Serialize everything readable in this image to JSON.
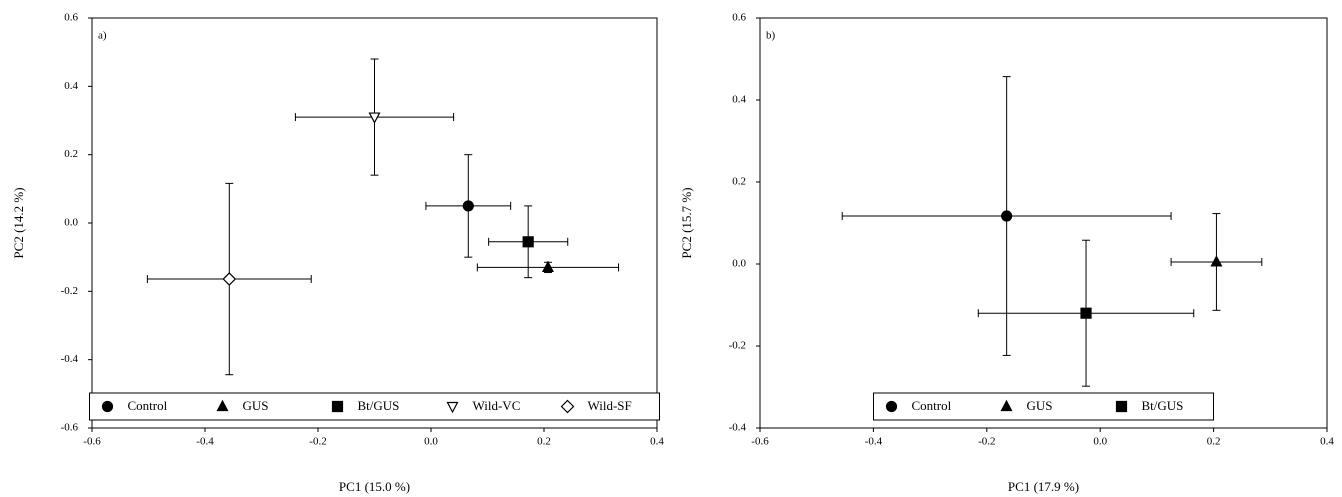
{
  "chart_data": [
    {
      "type": "scatter",
      "label": "a)",
      "xlabel": "PC1 (15.0 %)",
      "ylabel": "PC2 (14.2 %)",
      "xlim": [
        -0.6,
        0.4
      ],
      "ylim": [
        -0.6,
        0.6
      ],
      "xticks": [
        -0.6,
        -0.4,
        -0.2,
        {
          "value": 0,
          "label": "0.0"
        },
        0.2,
        0.4
      ],
      "yticks": [
        -0.6,
        -0.4,
        -0.2,
        {
          "value": 0,
          "label": "0.0"
        },
        0.2,
        0.4,
        0.6
      ],
      "legend": "lower center",
      "series": [
        {
          "name": "Control",
          "color": "#000000",
          "marker": "circle",
          "filled": true,
          "x": [
            0.066
          ],
          "values": [
            0.05
          ],
          "x_err": [
            0.075
          ],
          "y_err": [
            0.15
          ]
        },
        {
          "name": "GUS",
          "color": "#000000",
          "marker": "triangle",
          "filled": true,
          "x": [
            0.207
          ],
          "values": [
            -0.13
          ],
          "x_err": [
            0.125
          ],
          "y_err": [
            0.015
          ]
        },
        {
          "name": "Bt/GUS",
          "color": "#000000",
          "marker": "square",
          "filled": true,
          "x": [
            0.172
          ],
          "values": [
            -0.055
          ],
          "x_err": [
            0.07
          ],
          "y_err": [
            0.105
          ]
        },
        {
          "name": "Wild-VC",
          "color": "#000000",
          "marker": "triangle-down",
          "filled": false,
          "x": [
            -0.1
          ],
          "values": [
            0.31
          ],
          "x_err": [
            0.14
          ],
          "y_err": [
            0.17
          ]
        },
        {
          "name": "Wild-SF",
          "color": "#000000",
          "marker": "diamond",
          "filled": false,
          "x": [
            -0.357
          ],
          "values": [
            -0.164
          ],
          "x_err": [
            0.145
          ],
          "y_err": [
            0.28
          ]
        }
      ]
    },
    {
      "type": "scatter",
      "label": "b)",
      "xlabel": "PC1 (17.9 %)",
      "ylabel": "PC2 (15.7 %)",
      "xlim": [
        -0.6,
        0.4
      ],
      "ylim": [
        -0.4,
        0.6
      ],
      "xticks": [
        -0.6,
        -0.4,
        -0.2,
        {
          "value": 0,
          "label": "0.0"
        },
        0.2,
        0.4
      ],
      "yticks": [
        -0.4,
        -0.2,
        {
          "value": 0,
          "label": "0.0"
        },
        0.2,
        0.4,
        0.6
      ],
      "legend": "lower center",
      "series": [
        {
          "name": "Control",
          "color": "#000000",
          "marker": "circle",
          "filled": true,
          "x": [
            -0.165
          ],
          "values": [
            0.117
          ],
          "x_err": [
            0.29
          ],
          "y_err": [
            0.34
          ]
        },
        {
          "name": "GUS",
          "color": "#000000",
          "marker": "triangle",
          "filled": true,
          "x": [
            0.205
          ],
          "values": [
            0.005
          ],
          "x_err": [
            0.08
          ],
          "y_err": [
            0.118
          ]
        },
        {
          "name": "Bt/GUS",
          "color": "#000000",
          "marker": "square",
          "filled": true,
          "x": [
            -0.025
          ],
          "values": [
            -0.12
          ],
          "x_err": [
            0.19
          ],
          "y_err": [
            0.178
          ]
        }
      ]
    }
  ]
}
